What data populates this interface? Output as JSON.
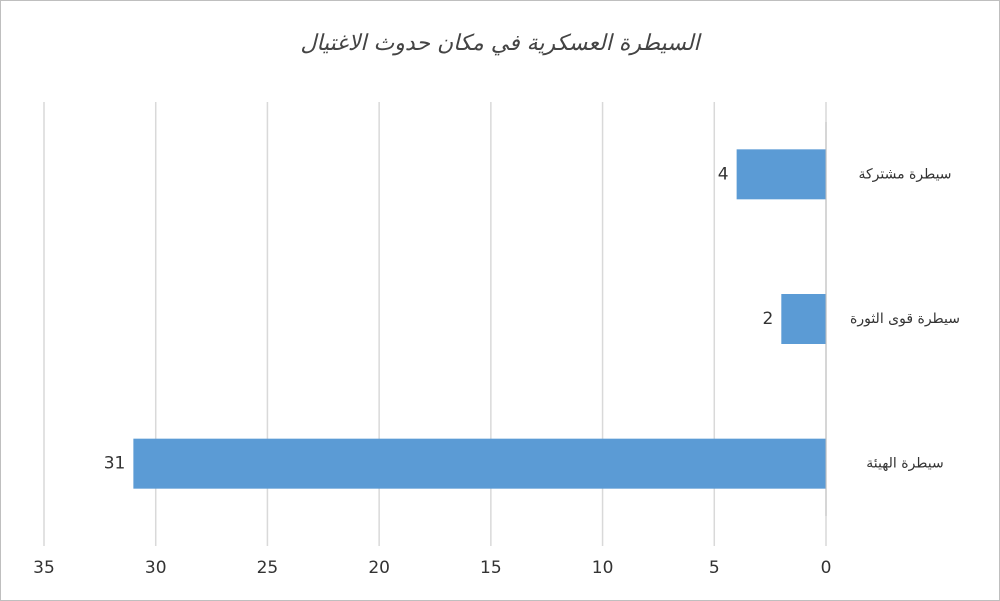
{
  "chart_data": {
    "type": "bar",
    "orientation": "horizontal",
    "title": "السيطرة العسكرية في مكان حدوث الاغتيال",
    "categories": [
      "سيطرة مشتركة",
      "سيطرة قوى الثورة",
      "سيطرة الهيئة"
    ],
    "values": [
      4,
      2,
      31
    ],
    "color": "#5b9bd5",
    "xlim": [
      0,
      35
    ],
    "xticks": [
      0,
      5,
      10,
      15,
      20,
      25,
      30,
      35
    ],
    "x_reversed": true,
    "grid": true
  }
}
